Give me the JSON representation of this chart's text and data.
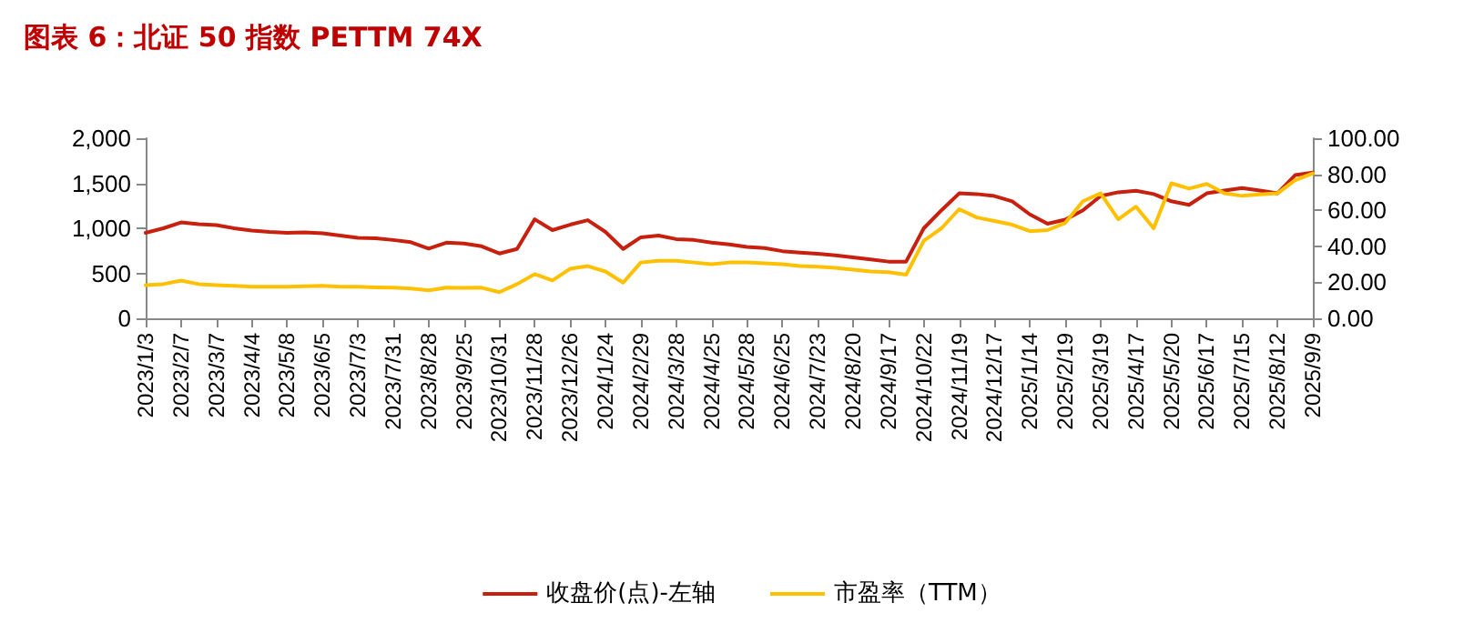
{
  "chart_data": {
    "type": "line",
    "title": "图表 6：北证 50 指数 PETTM 74X",
    "categories": [
      "2023/1/3",
      null,
      "2023/2/7",
      null,
      "2023/3/7",
      null,
      "2023/4/4",
      null,
      "2023/5/8",
      null,
      "2023/6/5",
      null,
      "2023/7/3",
      null,
      "2023/7/31",
      null,
      "2023/8/28",
      null,
      "2023/9/25",
      null,
      "2023/10/31",
      null,
      "2023/11/28",
      null,
      "2023/12/26",
      null,
      "2024/1/24",
      null,
      "2024/2/29",
      null,
      "2024/3/28",
      null,
      "2024/4/25",
      null,
      "2024/5/28",
      null,
      "2024/6/25",
      null,
      "2024/7/23",
      null,
      "2024/8/20",
      null,
      "2024/9/17",
      null,
      "2024/10/22",
      null,
      "2024/11/19",
      null,
      "2024/12/17",
      null,
      "2025/1/14",
      null,
      "2025/2/19",
      null,
      "2025/3/19",
      null,
      "2025/4/17",
      null,
      "2025/5/20",
      null,
      "2025/6/17",
      null,
      "2025/7/15",
      null,
      "2025/8/12",
      null,
      "2025/9/9"
    ],
    "series": [
      {
        "name": "收盘价(点)-左轴",
        "color": "#c8200e",
        "values": [
          950,
          1000,
          1065,
          1045,
          1035,
          1000,
          975,
          960,
          950,
          955,
          945,
          920,
          895,
          890,
          870,
          845,
          775,
          840,
          830,
          800,
          720,
          770,
          1100,
          980,
          1040,
          1090,
          960,
          770,
          900,
          920,
          880,
          870,
          840,
          820,
          793,
          780,
          746,
          730,
          717,
          700,
          676,
          655,
          630,
          630,
          1000,
          1200,
          1388,
          1380,
          1358,
          1300,
          1154,
          1050,
          1096,
          1200,
          1358,
          1400,
          1417,
          1380,
          1300,
          1260,
          1388,
          1420,
          1446,
          1420,
          1388,
          1590,
          1620
        ]
      },
      {
        "name": "市盈率（TTM）",
        "color": "#ffc000",
        "axis": "y2",
        "values": [
          18.4,
          19,
          21,
          19,
          18.4,
          18,
          17.5,
          17.5,
          17.5,
          17.8,
          18,
          17.5,
          17.5,
          17.2,
          17,
          16.5,
          15.5,
          17,
          16.9,
          17,
          14.5,
          19,
          24.5,
          21,
          27.5,
          29,
          26,
          19.8,
          31,
          32,
          32,
          31,
          30,
          31,
          31,
          30.5,
          30,
          29,
          28.6,
          28,
          27,
          26,
          25.6,
          24.2,
          43,
          50,
          60.6,
          56,
          54,
          52,
          48.4,
          49,
          53,
          65,
          69.4,
          55,
          62,
          50,
          75,
          72,
          74.6,
          69.4,
          68,
          68.8,
          69.4,
          76.7,
          80.5
        ]
      }
    ],
    "ylim": [
      0,
      2000
    ],
    "yticks": [
      0,
      500,
      {
        "value": 1000,
        "label": "1,000"
      },
      {
        "value": 1500,
        "label": "1,500"
      },
      {
        "value": 2000,
        "label": "2,000"
      }
    ],
    "y2lim": [
      0,
      100
    ],
    "y2ticks": [
      {
        "value": 0,
        "label": "0.00"
      },
      {
        "value": 20,
        "label": "20.00"
      },
      {
        "value": 40,
        "label": "40.00"
      },
      {
        "value": 60,
        "label": "60.00"
      },
      {
        "value": 80,
        "label": "80.00"
      },
      {
        "value": 100,
        "label": "100.00"
      }
    ],
    "legend": "bottom",
    "grid": false,
    "marker": "none",
    "line_style": "solid"
  }
}
